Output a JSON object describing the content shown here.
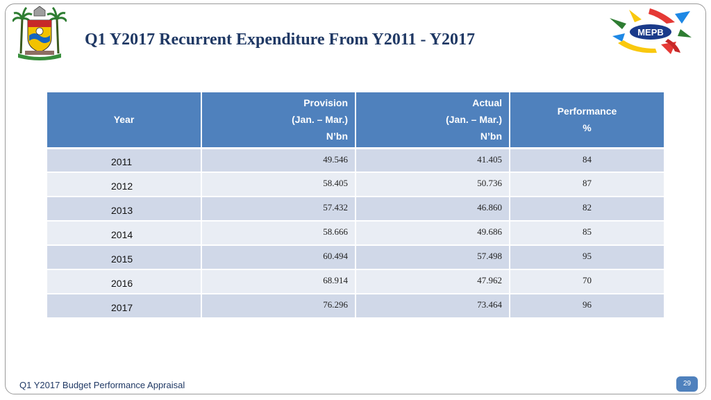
{
  "title": "Q1 Y2017 Recurrent Expenditure From Y2011 - Y2017",
  "table": {
    "headers": {
      "year": "Year",
      "provision": [
        "Provision",
        "(Jan. – Mar.)",
        "N’bn"
      ],
      "actual": [
        "Actual",
        "(Jan. – Mar.)",
        "N’bn"
      ],
      "performance": [
        "Performance",
        "%"
      ]
    },
    "rows": [
      {
        "year": "2011",
        "provision": "49.546",
        "actual": "41.405",
        "performance": "84"
      },
      {
        "year": "2012",
        "provision": "58.405",
        "actual": "50.736",
        "performance": "87"
      },
      {
        "year": "2013",
        "provision": "57.432",
        "actual": "46.860",
        "performance": "82"
      },
      {
        "year": "2014",
        "provision": "58.666",
        "actual": "49.686",
        "performance": "85"
      },
      {
        "year": "2015",
        "provision": "60.494",
        "actual": "57.498",
        "performance": "95"
      },
      {
        "year": "2016",
        "provision": "68.914",
        "actual": "47.962",
        "performance": "70"
      },
      {
        "year": "2017",
        "provision": "76.296",
        "actual": "73.464",
        "performance": "96"
      }
    ]
  },
  "logos": {
    "left": "lagos-state-crest",
    "right_text": "MEPB"
  },
  "footer": {
    "text": "Q1 Y2017 Budget Performance Appraisal",
    "page_number": "29"
  },
  "colors": {
    "title": "#1f3864",
    "header_fill": "#4f81bd",
    "row_dark": "#d0d8e8",
    "row_light": "#e9edf4"
  }
}
